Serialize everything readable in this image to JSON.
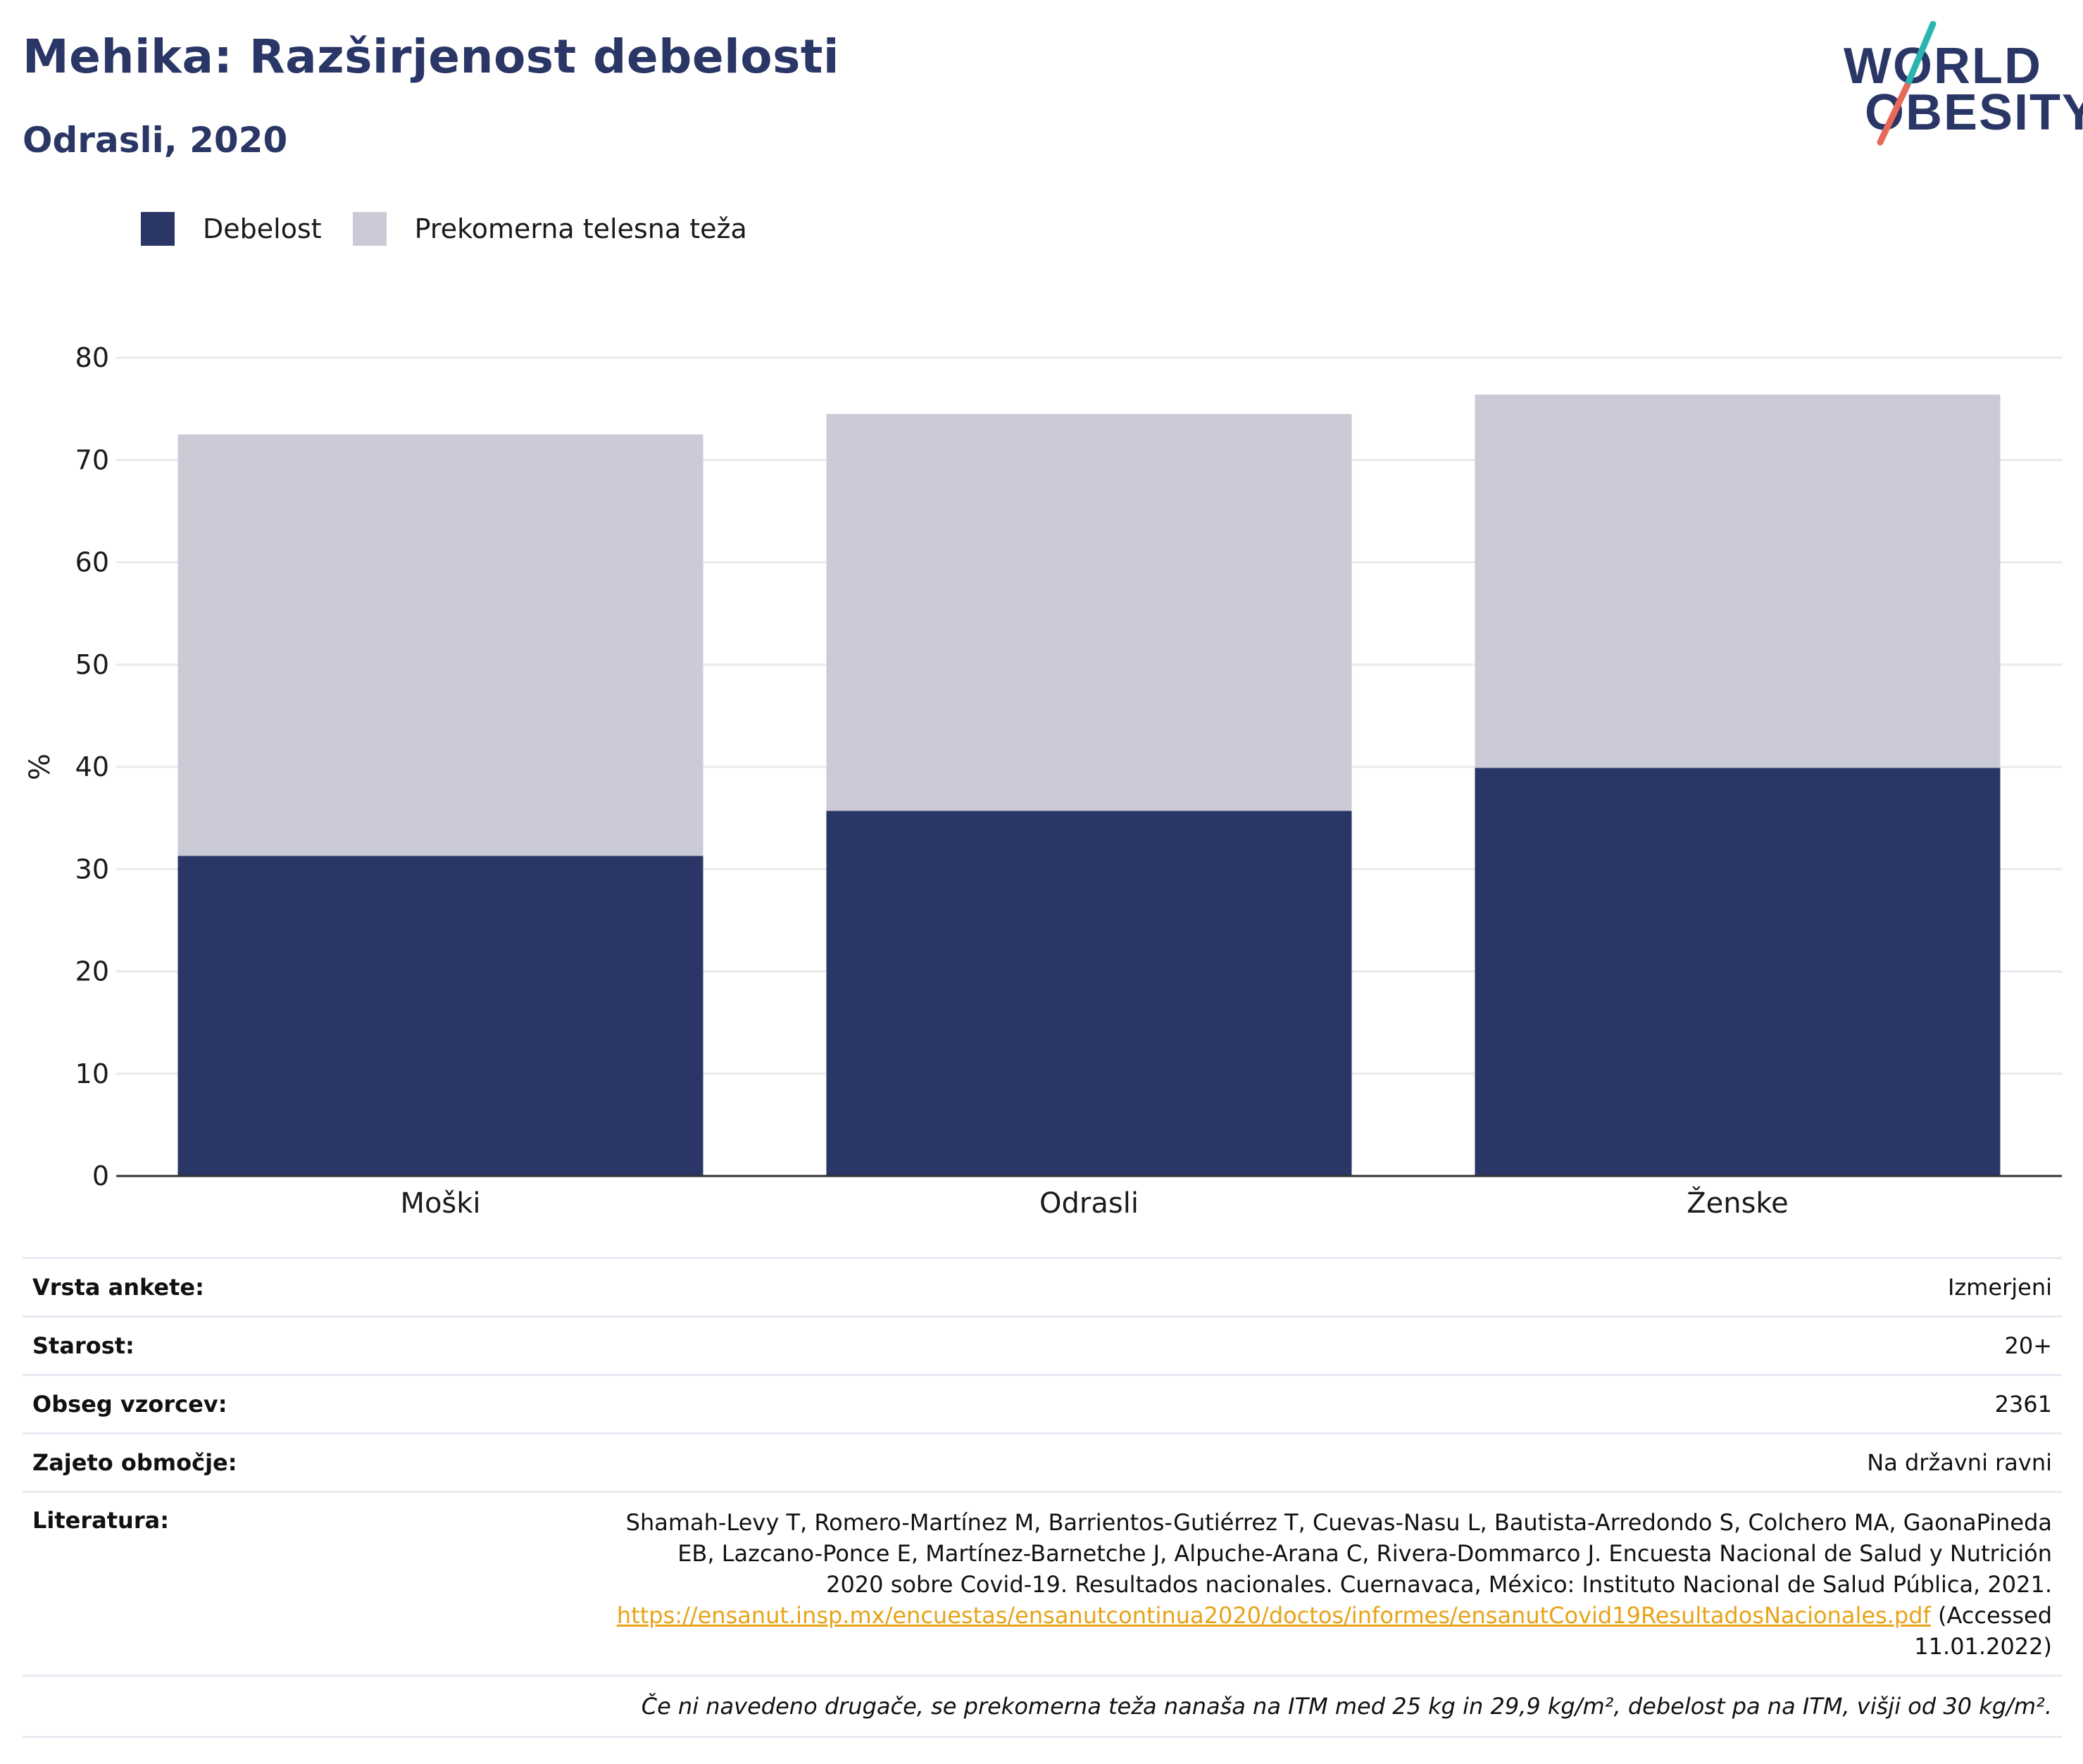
{
  "header": {
    "title": "Mehika: Razširjenost debelosti",
    "subtitle": "Odrasli, 2020"
  },
  "logo": {
    "line1": "WORLD",
    "line2": "OBESITY",
    "accent_teal": "#2bb5b0",
    "accent_coral": "#e8685a"
  },
  "legend": [
    {
      "label": "Debelost",
      "color": "#2a3766"
    },
    {
      "label": "Prekomerna telesna teža",
      "color": "#cacbd6"
    }
  ],
  "chart_data": {
    "type": "bar",
    "stacked": true,
    "categories": [
      "Moški",
      "Odrasli",
      "Ženske"
    ],
    "series": [
      {
        "name": "Debelost",
        "color": "#2a3766",
        "values": [
          31.3,
          35.7,
          39.9
        ]
      },
      {
        "name": "Prekomerna telesna teža",
        "color": "#cacbd6",
        "values": [
          41.2,
          38.8,
          36.5
        ]
      }
    ],
    "ylabel": "%",
    "xlabel": "",
    "ylim": [
      0,
      80
    ],
    "yticks": [
      0,
      10,
      20,
      30,
      40,
      50,
      60,
      70,
      80
    ],
    "grid": true,
    "legend_position": "top-left"
  },
  "details": {
    "survey_type": {
      "label": "Vrsta ankete:",
      "value": "Izmerjeni"
    },
    "age": {
      "label": "Starost:",
      "value": "20+"
    },
    "sample_size": {
      "label": "Obseg vzorcev:",
      "value": "2361"
    },
    "area": {
      "label": "Zajeto območje:",
      "value": "Na državni ravni"
    },
    "literature": {
      "label": "Literatura:",
      "text": "Shamah-Levy T, Romero-Martínez M, Barrientos-Gutiérrez T, Cuevas-Nasu L, Bautista-Arredondo S, Colchero MA, GaonaPineda EB, Lazcano-Ponce E, Martínez-Barnetche J, Alpuche-Arana C, Rivera-Dommarco J. Encuesta Nacional de Salud y Nutrición 2020 sobre Covid-19. Resultados nacionales. Cuernavaca, México: Instituto Nacional de Salud Pública, 2021.",
      "link": "https://ensanut.insp.mx/encuestas/ensanutcontinua2020/doctos/informes/ensanutCovid19ResultadosNacionales.pdf",
      "accessed": "(Accessed 11.01.2022)"
    },
    "note": "Če ni navedeno drugače, se prekomerna teža nanaša na ITM med 25 kg in 29,9 kg/m², debelost pa na ITM, višji od 30 kg/m²."
  }
}
